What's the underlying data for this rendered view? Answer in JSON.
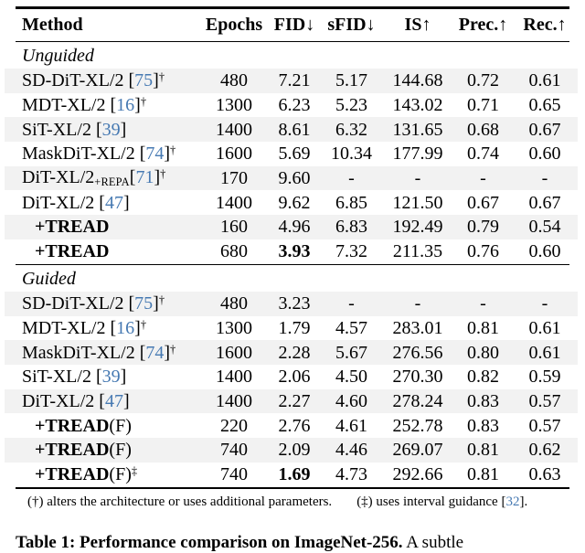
{
  "colors": {
    "cite_blue": "#4679b2",
    "row_stripe": "#f2f2f2",
    "rule_black": "#000000"
  },
  "table": {
    "columns": [
      "Method",
      "Epochs",
      "FID↓",
      "sFID↓",
      "IS↑",
      "Prec.↑",
      "Rec.↑"
    ],
    "sections": [
      {
        "label": "Unguided",
        "rows": [
          {
            "stripe": true,
            "method": {
              "plain": "SD-DiT-XL/2 ",
              "cite": "75",
              "sup": "†"
            },
            "values": [
              "480",
              "7.21",
              "5.17",
              "144.68",
              "0.72",
              "0.61"
            ]
          },
          {
            "stripe": false,
            "method": {
              "plain": "MDT-XL/2 ",
              "cite": "16",
              "sup": "†"
            },
            "values": [
              "1300",
              "6.23",
              "5.23",
              "143.02",
              "0.71",
              "0.65"
            ]
          },
          {
            "stripe": true,
            "method": {
              "plain": "SiT-XL/2 ",
              "cite": "39"
            },
            "values": [
              "1400",
              "8.61",
              "6.32",
              "131.65",
              "0.68",
              "0.67"
            ]
          },
          {
            "stripe": false,
            "method": {
              "plain": "MaskDiT-XL/2 ",
              "cite": "74",
              "sup": "†"
            },
            "values": [
              "1600",
              "5.69",
              "10.34",
              "177.99",
              "0.74",
              "0.60"
            ]
          },
          {
            "stripe": true,
            "method": {
              "plain": "DiT-XL/2",
              "sub": "+REPA",
              "cite": "71",
              "sup": "†"
            },
            "values": [
              "170",
              "9.60",
              "-",
              "-",
              "-",
              "-"
            ]
          },
          {
            "stripe": false,
            "method": {
              "plain": "DiT-XL/2 ",
              "cite": "47"
            },
            "values": [
              "1400",
              "9.62",
              "6.85",
              "121.50",
              "0.67",
              "0.67"
            ]
          },
          {
            "stripe": true,
            "method": {
              "bold": "+TREAD",
              "indent": true
            },
            "values": [
              "160",
              "4.96",
              "6.83",
              "192.49",
              "0.79",
              "0.54"
            ]
          },
          {
            "stripe": false,
            "method": {
              "bold": "+TREAD",
              "indent": true
            },
            "values": [
              "680",
              "3.93",
              "7.32",
              "211.35",
              "0.76",
              "0.60"
            ],
            "bold_value": 1
          }
        ]
      },
      {
        "label": "Guided",
        "rows": [
          {
            "stripe": true,
            "method": {
              "plain": "SD-DiT-XL/2 ",
              "cite": "75",
              "sup": "†"
            },
            "values": [
              "480",
              "3.23",
              "-",
              "-",
              "-",
              "-"
            ]
          },
          {
            "stripe": false,
            "method": {
              "plain": "MDT-XL/2 ",
              "cite": "16",
              "sup": "†"
            },
            "values": [
              "1300",
              "1.79",
              "4.57",
              "283.01",
              "0.81",
              "0.61"
            ]
          },
          {
            "stripe": true,
            "method": {
              "plain": "MaskDiT-XL/2 ",
              "cite": "74",
              "sup": "†"
            },
            "values": [
              "1600",
              "2.28",
              "5.67",
              "276.56",
              "0.80",
              "0.61"
            ]
          },
          {
            "stripe": false,
            "method": {
              "plain": "SiT-XL/2 ",
              "cite": "39"
            },
            "values": [
              "1400",
              "2.06",
              "4.50",
              "270.30",
              "0.82",
              "0.59"
            ]
          },
          {
            "stripe": true,
            "method": {
              "plain": "DiT-XL/2 ",
              "cite": "47"
            },
            "values": [
              "1400",
              "2.27",
              "4.60",
              "278.24",
              "0.83",
              "0.57"
            ]
          },
          {
            "stripe": false,
            "method": {
              "bold": "+TREAD",
              "suffix": "(F)",
              "indent": true
            },
            "values": [
              "220",
              "2.76",
              "4.61",
              "252.78",
              "0.83",
              "0.57"
            ]
          },
          {
            "stripe": true,
            "method": {
              "bold": "+TREAD",
              "suffix": "(F)",
              "indent": true
            },
            "values": [
              "740",
              "2.09",
              "4.46",
              "269.07",
              "0.81",
              "0.62"
            ]
          },
          {
            "stripe": false,
            "method": {
              "bold": "+TREAD",
              "suffix": "(F)",
              "sup": "‡",
              "indent": true
            },
            "values": [
              "740",
              "1.69",
              "4.73",
              "292.66",
              "0.81",
              "0.63"
            ],
            "bold_value": 1
          }
        ]
      }
    ]
  },
  "footnote": {
    "dagger": "(†) alters the architecture or uses additional parameters.",
    "ddagger_pre": "(‡) uses interval guidance [",
    "ddagger_cite": "32",
    "ddagger_post": "]."
  },
  "caption": {
    "bold": "Table 1: Performance comparison on ImageNet-256.",
    "rest": " A subtle"
  }
}
